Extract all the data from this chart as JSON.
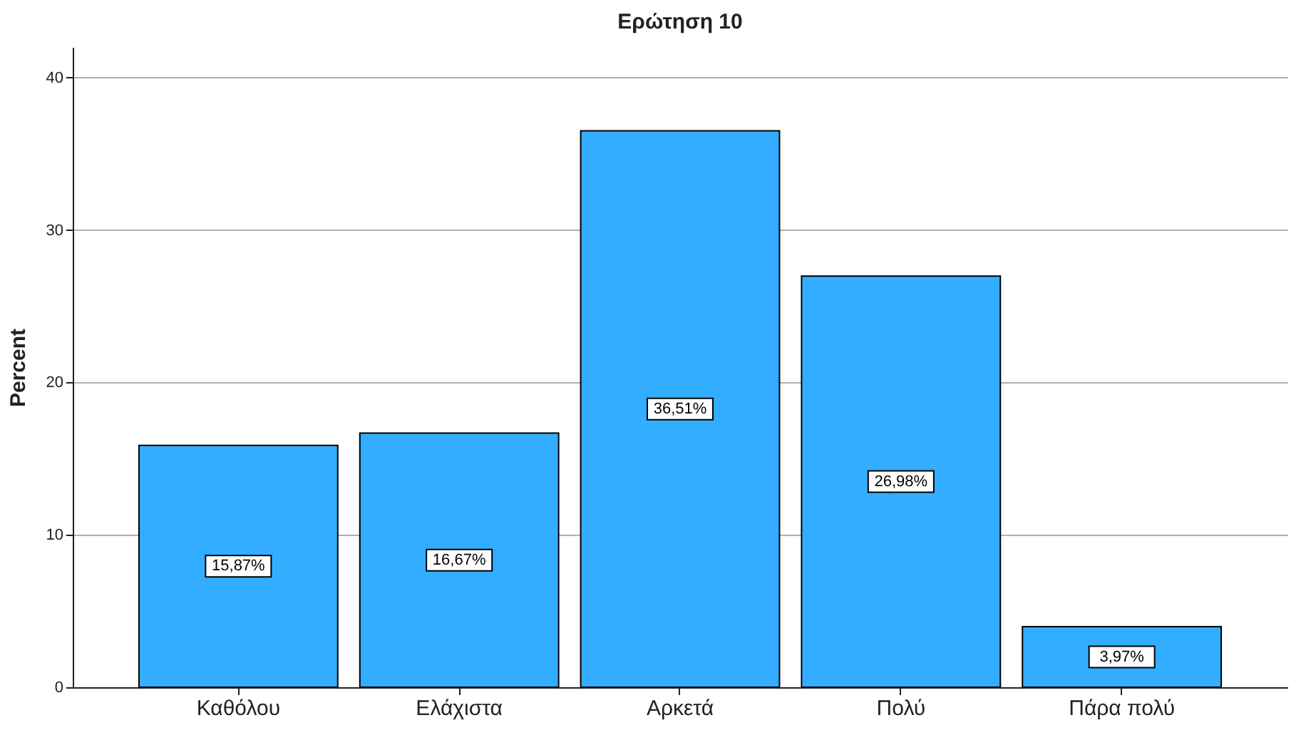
{
  "chart_data": {
    "type": "bar",
    "title": "Ερώτηση 10",
    "ylabel": "Percent",
    "categories": [
      "Καθόλου",
      "Ελάχιστα",
      "Αρκετά",
      "Πολύ",
      "Πάρα πολύ"
    ],
    "values": [
      15.87,
      16.67,
      36.51,
      26.98,
      3.97
    ],
    "value_labels": [
      "15,87%",
      "16,67%",
      "36,51%",
      "26,98%",
      "3,97%"
    ],
    "color": "#33adff",
    "ylim": [
      0,
      42
    ],
    "yticks": [
      0,
      10,
      20,
      30,
      40
    ],
    "grid": "y"
  }
}
